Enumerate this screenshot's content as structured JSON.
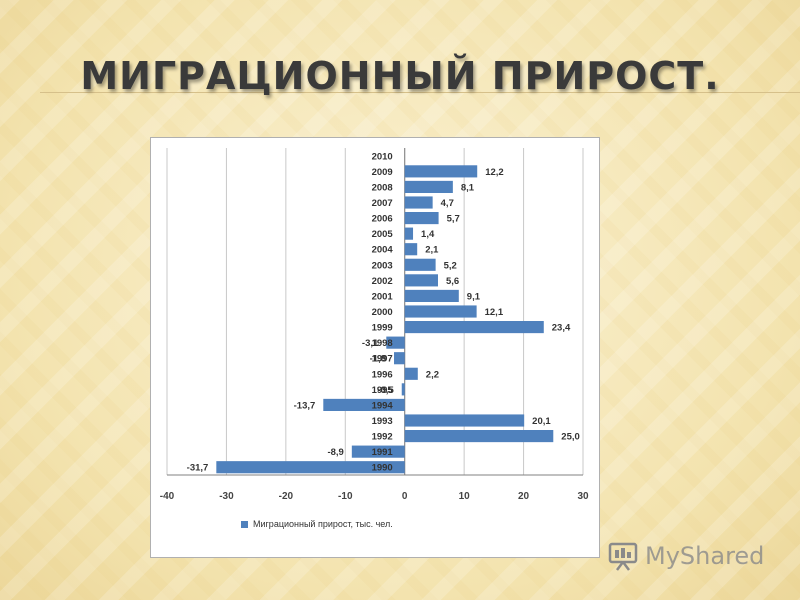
{
  "slide": {
    "title": "МИГРАЦИОННЫЙ ПРИРОСТ."
  },
  "watermark": {
    "brand": "MyShared",
    "icon": "projector-screen-icon"
  },
  "chart_data": {
    "type": "bar",
    "orientation": "horizontal",
    "categories": [
      "1990",
      "1991",
      "1992",
      "1993",
      "1994",
      "1995",
      "1996",
      "1997",
      "1998",
      "1999",
      "2000",
      "2001",
      "2002",
      "2003",
      "2004",
      "2005",
      "2006",
      "2007",
      "2008",
      "2009",
      "2010"
    ],
    "series": [
      {
        "name": "Миграционный прирост, тыс. чел.",
        "values": [
          -31.7,
          -8.9,
          25.0,
          20.1,
          -13.7,
          -0.5,
          2.2,
          -1.8,
          -3.1,
          23.4,
          12.1,
          9.1,
          5.6,
          5.2,
          2.1,
          1.4,
          5.7,
          4.7,
          8.1,
          12.2,
          null
        ],
        "data_labels": [
          "-31,7",
          "-8,9",
          "25,0",
          "20,1",
          "-13,7",
          "-0,5",
          "2,2",
          "-1,8",
          "-3,1",
          "23,4",
          "12,1",
          "9,1",
          "5,6",
          "5,2",
          "2,1",
          "1,4",
          "5,7",
          "4,7",
          "8,1",
          "12,2",
          ""
        ],
        "color": "#4f81bd"
      }
    ],
    "xlim": [
      -40,
      30
    ],
    "xticks": [
      -40,
      -30,
      -20,
      -10,
      0,
      10,
      20,
      30
    ],
    "grid": "vertical",
    "legend": "bottom"
  }
}
